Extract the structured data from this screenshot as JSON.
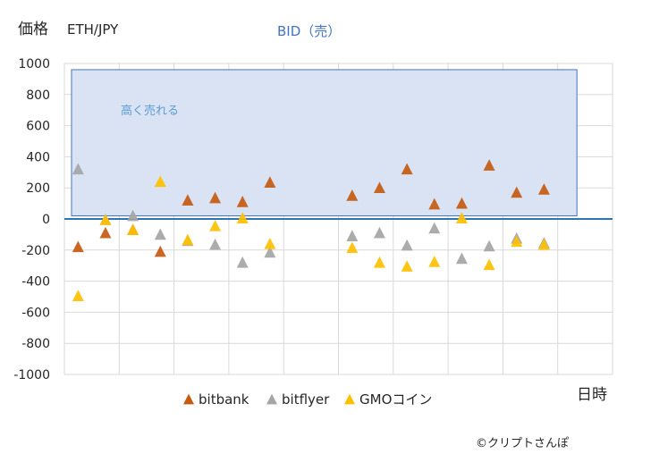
{
  "chart_data": {
    "type": "scatter",
    "ylabel": "価格",
    "subtitle": "ETH/JPY",
    "title": "BID（売）",
    "xlabel": "日時",
    "band_label": "高く売れる",
    "band": [
      20,
      960
    ],
    "ylim": [
      -1000,
      1000
    ],
    "yticks": [
      1000,
      800,
      600,
      400,
      200,
      0,
      -200,
      -400,
      -600,
      -800,
      -1000
    ],
    "x_count": 20,
    "grid": true,
    "legend_position": "bottom",
    "copyright": "©クリプトさんぽ",
    "series": [
      {
        "name": "bitbank",
        "color": "#c55a11",
        "values": [
          -180,
          -90,
          -70,
          -210,
          120,
          135,
          110,
          235,
          null,
          null,
          150,
          200,
          320,
          95,
          100,
          345,
          170,
          190
        ]
      },
      {
        "name": "bitflyer",
        "color": "#a5a5a5",
        "values": [
          320,
          -5,
          20,
          -100,
          -140,
          -165,
          -280,
          -215,
          null,
          null,
          -110,
          -90,
          -170,
          -60,
          -255,
          -175,
          -125,
          -155
        ]
      },
      {
        "name": "GMOコイン",
        "color": "#ffc000",
        "values": [
          -495,
          -5,
          -70,
          240,
          -135,
          -45,
          5,
          -160,
          null,
          null,
          -185,
          -280,
          -305,
          -275,
          5,
          -295,
          -145,
          -165
        ]
      }
    ],
    "x": [
      1,
      2,
      3,
      4,
      5,
      6,
      7,
      8,
      9,
      10,
      11,
      12,
      13,
      14,
      15,
      16,
      17,
      18
    ]
  }
}
